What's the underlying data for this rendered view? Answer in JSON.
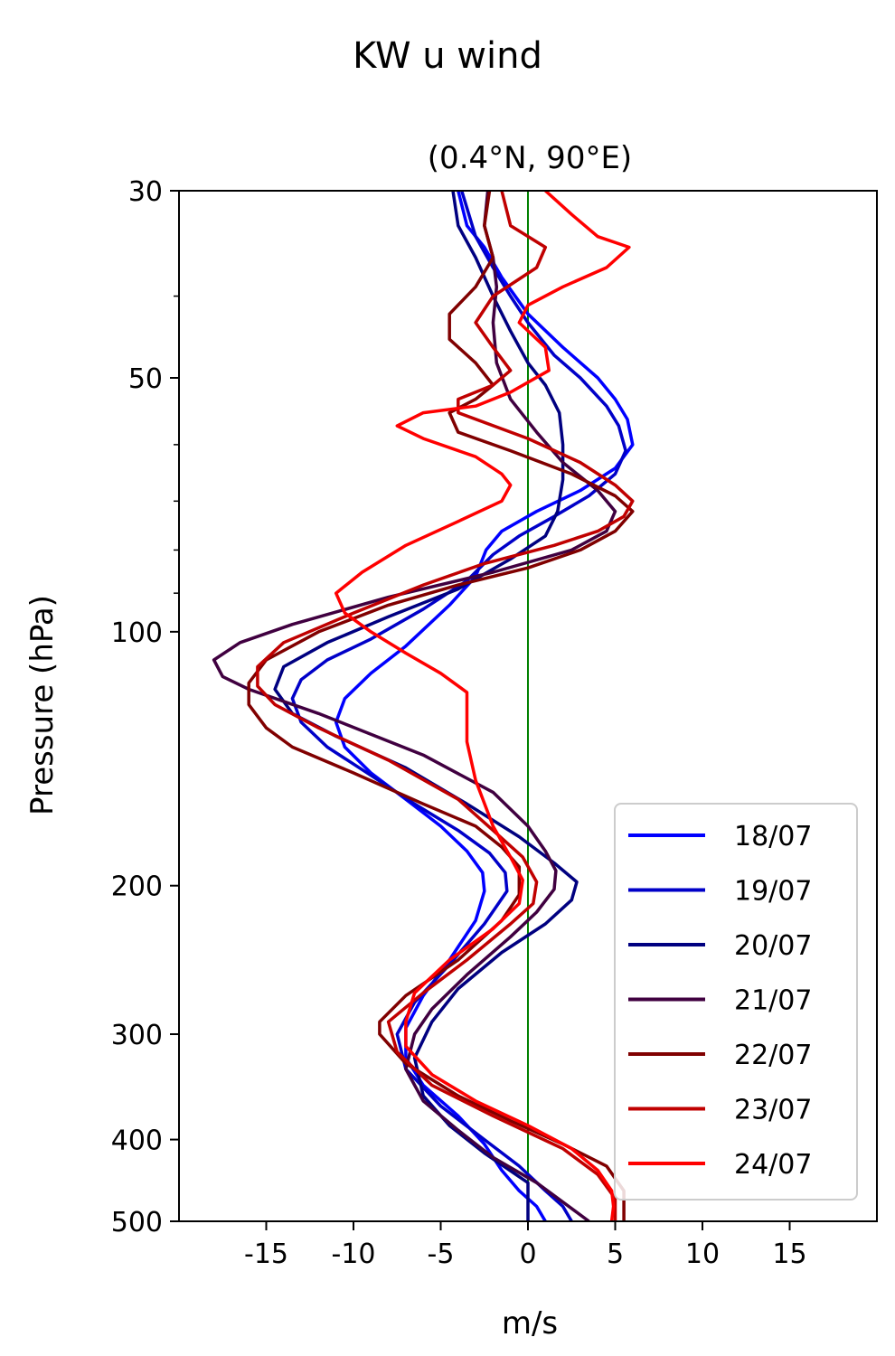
{
  "chart_data": {
    "type": "line",
    "title": "KW u wind",
    "subtitle": "(0.4°N, 90°E)",
    "xlabel": "m/s",
    "ylabel": "Pressure (hPa)",
    "xlim": [
      -20,
      20
    ],
    "ylim": [
      500,
      30
    ],
    "yscale": "log",
    "xticks": [
      -15,
      -10,
      -5,
      0,
      5,
      10,
      15
    ],
    "xtick_labels": [
      "-15",
      "-10",
      "-5",
      "0",
      "5",
      "10",
      "15"
    ],
    "yticks": [
      30,
      50,
      100,
      200,
      300,
      400,
      500
    ],
    "ytick_labels": [
      "30",
      "50",
      "100",
      "200",
      "300",
      "400",
      "500"
    ],
    "y_minor_ticks": [
      40,
      60,
      70,
      80,
      90
    ],
    "reference_line": {
      "x": 0,
      "color": "#008000"
    },
    "grid": false,
    "legend_position": "lower right",
    "series": [
      {
        "name": "18/07",
        "color": "#0000ff",
        "points": [
          [
            -4,
            30
          ],
          [
            -3.5,
            33
          ],
          [
            -2.5,
            35
          ],
          [
            -1.5,
            38
          ],
          [
            0,
            42
          ],
          [
            2,
            46
          ],
          [
            4,
            50
          ],
          [
            5,
            53
          ],
          [
            5.7,
            56
          ],
          [
            6,
            60
          ],
          [
            5,
            64
          ],
          [
            3,
            68
          ],
          [
            0.5,
            72
          ],
          [
            -1.5,
            76
          ],
          [
            -2.4,
            80
          ],
          [
            -3,
            86
          ],
          [
            -4.5,
            93
          ],
          [
            -7,
            104
          ],
          [
            -9,
            112
          ],
          [
            -10.5,
            120
          ],
          [
            -11,
            128
          ],
          [
            -10.5,
            137
          ],
          [
            -9,
            147
          ],
          [
            -7,
            158
          ],
          [
            -5,
            170
          ],
          [
            -3.5,
            182
          ],
          [
            -2.6,
            193
          ],
          [
            -2.5,
            203
          ],
          [
            -3,
            220
          ],
          [
            -4.5,
            245
          ],
          [
            -6,
            270
          ],
          [
            -7,
            295
          ],
          [
            -7,
            320
          ],
          [
            -6,
            345
          ],
          [
            -4,
            375
          ],
          [
            -2.5,
            405
          ],
          [
            -1.5,
            435
          ],
          [
            -0.5,
            460
          ],
          [
            0.5,
            480
          ],
          [
            1,
            500
          ]
        ]
      },
      {
        "name": "19/07",
        "color": "#0000c8",
        "points": [
          [
            -3.8,
            30
          ],
          [
            -3,
            34
          ],
          [
            -2,
            37
          ],
          [
            -1,
            40
          ],
          [
            0,
            43
          ],
          [
            1.5,
            47
          ],
          [
            3,
            50
          ],
          [
            4.5,
            54
          ],
          [
            5.2,
            57
          ],
          [
            5.6,
            61
          ],
          [
            5,
            65
          ],
          [
            3.5,
            69
          ],
          [
            1.5,
            73
          ],
          [
            -0.5,
            77
          ],
          [
            -2,
            81
          ],
          [
            -3.5,
            87
          ],
          [
            -6,
            94
          ],
          [
            -9,
            102
          ],
          [
            -11.5,
            108
          ],
          [
            -13,
            114
          ],
          [
            -13.5,
            120
          ],
          [
            -13,
            128
          ],
          [
            -11.5,
            137
          ],
          [
            -9,
            148
          ],
          [
            -6.5,
            160
          ],
          [
            -4,
            172
          ],
          [
            -2.2,
            183
          ],
          [
            -1.3,
            193
          ],
          [
            -1.2,
            203
          ],
          [
            -2.5,
            222
          ],
          [
            -4.5,
            248
          ],
          [
            -6.5,
            275
          ],
          [
            -7.5,
            300
          ],
          [
            -7,
            330
          ],
          [
            -5,
            365
          ],
          [
            -2.5,
            400
          ],
          [
            -0.5,
            430
          ],
          [
            1,
            460
          ],
          [
            2,
            480
          ],
          [
            2.5,
            500
          ]
        ]
      },
      {
        "name": "20/07",
        "color": "#000080",
        "points": [
          [
            -4.3,
            30
          ],
          [
            -4,
            33
          ],
          [
            -3,
            36
          ],
          [
            -2,
            40
          ],
          [
            -1,
            44
          ],
          [
            0,
            48
          ],
          [
            1,
            51
          ],
          [
            1.8,
            55
          ],
          [
            2,
            60
          ],
          [
            2,
            66
          ],
          [
            1.7,
            72
          ],
          [
            1,
            77
          ],
          [
            -1,
            82
          ],
          [
            -4,
            89
          ],
          [
            -8,
            96
          ],
          [
            -11.5,
            103
          ],
          [
            -14,
            110
          ],
          [
            -14.5,
            117
          ],
          [
            -13.5,
            125
          ],
          [
            -11,
            133
          ],
          [
            -7,
            145
          ],
          [
            -3.5,
            160
          ],
          [
            -0.5,
            175
          ],
          [
            1.5,
            188
          ],
          [
            2.8,
            198
          ],
          [
            2.5,
            208
          ],
          [
            1,
            222
          ],
          [
            -1.5,
            240
          ],
          [
            -4,
            265
          ],
          [
            -5.5,
            290
          ],
          [
            -6.5,
            320
          ],
          [
            -6,
            355
          ],
          [
            -4.5,
            385
          ],
          [
            -2.5,
            415
          ],
          [
            0,
            450
          ],
          [
            0,
            500
          ]
        ]
      },
      {
        "name": "21/07",
        "color": "#400040",
        "points": [
          [
            -2.3,
            30
          ],
          [
            -2.5,
            33
          ],
          [
            -2,
            36
          ],
          [
            -1.8,
            39
          ],
          [
            -2,
            43
          ],
          [
            -1.8,
            48
          ],
          [
            -1,
            53
          ],
          [
            0.5,
            58
          ],
          [
            2,
            63
          ],
          [
            4,
            68
          ],
          [
            5,
            72
          ],
          [
            4.5,
            76
          ],
          [
            2.5,
            80
          ],
          [
            -2,
            85
          ],
          [
            -8,
            91
          ],
          [
            -13.5,
            98
          ],
          [
            -16.5,
            103
          ],
          [
            -18,
            108
          ],
          [
            -17.5,
            113
          ],
          [
            -16,
            117
          ],
          [
            -12,
            125
          ],
          [
            -6,
            140
          ],
          [
            -2,
            155
          ],
          [
            0,
            170
          ],
          [
            1,
            182
          ],
          [
            1.6,
            192
          ],
          [
            1.5,
            202
          ],
          [
            0.5,
            215
          ],
          [
            -1,
            230
          ],
          [
            -3.5,
            255
          ],
          [
            -5.5,
            280
          ],
          [
            -6.5,
            300
          ],
          [
            -7,
            330
          ],
          [
            -6,
            360
          ],
          [
            -4,
            390
          ],
          [
            -2,
            420
          ],
          [
            0.5,
            450
          ],
          [
            3.5,
            500
          ]
        ]
      },
      {
        "name": "22/07",
        "color": "#800000",
        "points": [
          [
            -2.2,
            30
          ],
          [
            -2.5,
            33
          ],
          [
            -2,
            36
          ],
          [
            -3,
            39
          ],
          [
            -4.5,
            42
          ],
          [
            -4.5,
            45
          ],
          [
            -3,
            48
          ],
          [
            -2,
            51
          ],
          [
            -3,
            53
          ],
          [
            -4.5,
            55
          ],
          [
            -4,
            58
          ],
          [
            -1,
            61
          ],
          [
            2.5,
            65
          ],
          [
            5,
            69
          ],
          [
            6,
            72
          ],
          [
            5,
            76
          ],
          [
            3,
            80
          ],
          [
            0,
            84
          ],
          [
            -4,
            88
          ],
          [
            -8,
            93
          ],
          [
            -12,
            100
          ],
          [
            -15,
            108
          ],
          [
            -16,
            115
          ],
          [
            -16,
            122
          ],
          [
            -15,
            130
          ],
          [
            -13.5,
            137
          ],
          [
            -10,
            147
          ],
          [
            -6,
            160
          ],
          [
            -3,
            170
          ],
          [
            -1.5,
            180
          ],
          [
            -0.5,
            190
          ],
          [
            -0.5,
            205
          ],
          [
            -1.5,
            220
          ],
          [
            -4,
            245
          ],
          [
            -7,
            270
          ],
          [
            -8.5,
            290
          ],
          [
            -8.5,
            300
          ],
          [
            -7,
            325
          ],
          [
            -4,
            355
          ],
          [
            -1,
            380
          ],
          [
            2,
            405
          ],
          [
            4.5,
            430
          ],
          [
            5.5,
            460
          ],
          [
            5.5,
            500
          ]
        ]
      },
      {
        "name": "23/07",
        "color": "#c00000",
        "points": [
          [
            -1.5,
            30
          ],
          [
            -1,
            33
          ],
          [
            1,
            35
          ],
          [
            0.5,
            37
          ],
          [
            -2,
            40
          ],
          [
            -3,
            43
          ],
          [
            -2,
            46
          ],
          [
            -1,
            49
          ],
          [
            -2,
            51
          ],
          [
            -4,
            53
          ],
          [
            -4,
            55
          ],
          [
            0,
            59
          ],
          [
            3,
            63
          ],
          [
            5,
            67
          ],
          [
            6,
            70
          ],
          [
            5.5,
            73
          ],
          [
            4,
            76
          ],
          [
            1.5,
            79
          ],
          [
            -2.5,
            83
          ],
          [
            -6,
            88
          ],
          [
            -10,
            95
          ],
          [
            -14,
            103
          ],
          [
            -15.5,
            110
          ],
          [
            -15.5,
            116
          ],
          [
            -14.5,
            122
          ],
          [
            -12,
            130
          ],
          [
            -8,
            142
          ],
          [
            -4,
            158
          ],
          [
            -2,
            172
          ],
          [
            -0.3,
            185
          ],
          [
            0.5,
            198
          ],
          [
            0.3,
            210
          ],
          [
            -1,
            222
          ],
          [
            -3.5,
            245
          ],
          [
            -6,
            268
          ],
          [
            -8,
            290
          ],
          [
            -7.5,
            315
          ],
          [
            -5.5,
            345
          ],
          [
            -2,
            375
          ],
          [
            2,
            410
          ],
          [
            4,
            440
          ],
          [
            5,
            470
          ],
          [
            5,
            500
          ]
        ]
      },
      {
        "name": "24/07",
        "color": "#ff0000",
        "points": [
          [
            1,
            30
          ],
          [
            2.5,
            32
          ],
          [
            4,
            34
          ],
          [
            5.8,
            35
          ],
          [
            4.5,
            37
          ],
          [
            2,
            39
          ],
          [
            0,
            41
          ],
          [
            -0.5,
            43
          ],
          [
            1,
            46
          ],
          [
            1.2,
            49
          ],
          [
            -1,
            52
          ],
          [
            -3,
            54
          ],
          [
            -6,
            55
          ],
          [
            -7.5,
            57
          ],
          [
            -6,
            59
          ],
          [
            -3,
            62
          ],
          [
            -1.5,
            65
          ],
          [
            -1,
            67
          ],
          [
            -1.5,
            70
          ],
          [
            -4,
            74
          ],
          [
            -7,
            79
          ],
          [
            -9.5,
            85
          ],
          [
            -11,
            90
          ],
          [
            -10.5,
            95
          ],
          [
            -9,
            100
          ],
          [
            -7,
            106
          ],
          [
            -5,
            112
          ],
          [
            -3.5,
            118
          ],
          [
            -3.5,
            125
          ],
          [
            -3.5,
            135
          ],
          [
            -3,
            150
          ],
          [
            -2,
            170
          ],
          [
            -1,
            185
          ],
          [
            -0.3,
            197
          ],
          [
            -0.5,
            210
          ],
          [
            -2,
            225
          ],
          [
            -4.5,
            245
          ],
          [
            -6.5,
            268
          ],
          [
            -7,
            290
          ],
          [
            -7,
            310
          ],
          [
            -5.5,
            335
          ],
          [
            -3,
            360
          ],
          [
            0,
            385
          ],
          [
            2.5,
            410
          ],
          [
            4,
            435
          ],
          [
            4.8,
            460
          ],
          [
            4.9,
            480
          ],
          [
            4.8,
            500
          ]
        ]
      }
    ]
  }
}
